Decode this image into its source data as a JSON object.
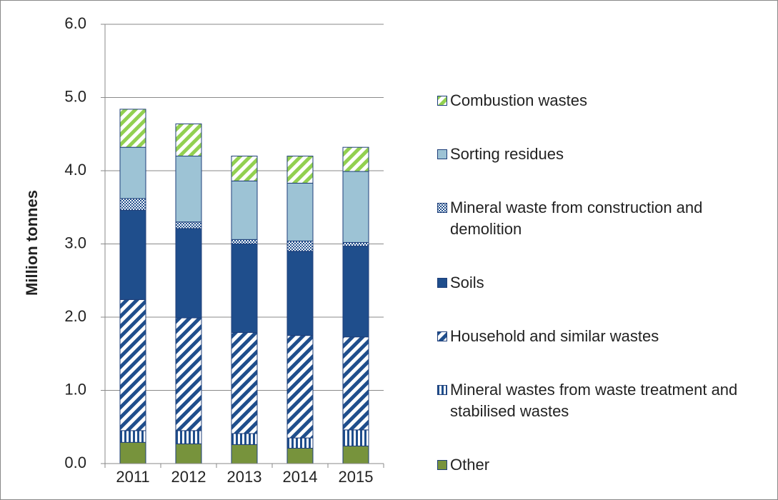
{
  "chart_data": {
    "type": "stacked_bar",
    "y_axis_label": "Million tonnes",
    "categories": [
      "2011",
      "2012",
      "2013",
      "2014",
      "2015"
    ],
    "ylim": [
      0,
      6
    ],
    "yticks": [
      {
        "value": 0,
        "label": "0.0"
      },
      {
        "value": 1,
        "label": "1.0"
      },
      {
        "value": 2,
        "label": "2.0"
      },
      {
        "value": 3,
        "label": "3.0"
      },
      {
        "value": 4,
        "label": "4.0"
      },
      {
        "value": 5,
        "label": "5.0"
      },
      {
        "value": 6,
        "label": "6.0"
      }
    ],
    "grid": true,
    "legend": "right",
    "series": [
      {
        "name": "Other",
        "color": "#77933c",
        "pattern": "solid",
        "values": [
          0.29,
          0.27,
          0.26,
          0.21,
          0.24
        ]
      },
      {
        "name": "Mineral wastes from waste treatment and stabilised wastes",
        "color": "#1f4e8c",
        "pattern": "vertical",
        "values": [
          0.16,
          0.18,
          0.15,
          0.14,
          0.22
        ]
      },
      {
        "name": "Household and similar wastes",
        "color": "#1f4e8c",
        "pattern": "diagonal",
        "values": [
          1.79,
          1.54,
          1.38,
          1.4,
          1.27
        ]
      },
      {
        "name": "Soils",
        "color": "#1f4e8c",
        "pattern": "solid",
        "values": [
          1.22,
          1.22,
          1.21,
          1.15,
          1.24
        ]
      },
      {
        "name": "Mineral waste from construction and demolition",
        "color": "#1f4e8c",
        "pattern": "checker",
        "values": [
          0.16,
          0.09,
          0.06,
          0.14,
          0.05
        ]
      },
      {
        "name": "Sorting residues",
        "color": "#9dc3d5",
        "pattern": "solid",
        "values": [
          0.7,
          0.9,
          0.8,
          0.79,
          0.97
        ]
      },
      {
        "name": "Combustion wastes",
        "color": "#92d050",
        "pattern": "diagonal",
        "values": [
          0.52,
          0.44,
          0.34,
          0.37,
          0.33
        ]
      }
    ]
  }
}
